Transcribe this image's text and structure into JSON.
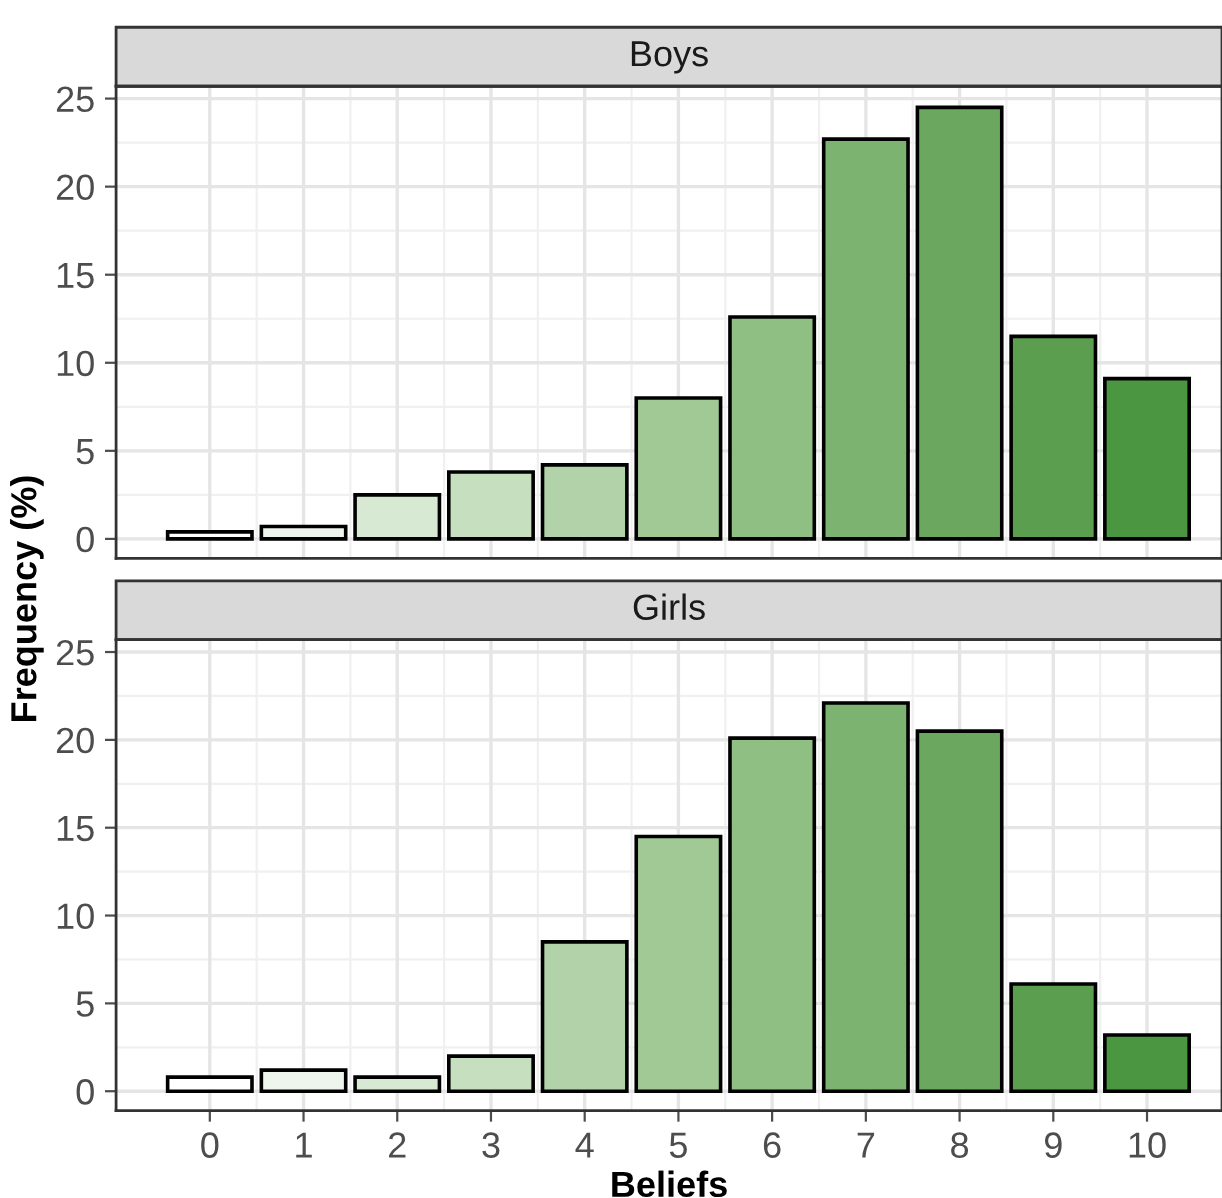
{
  "chart_data": [
    {
      "type": "bar",
      "title": "Boys",
      "ylabel": "Frequency (%)",
      "x": [
        0,
        1,
        2,
        3,
        4,
        5,
        6,
        7,
        8,
        9,
        10
      ],
      "values": [
        0.4,
        0.7,
        2.5,
        3.8,
        4.2,
        8.0,
        12.6,
        22.7,
        24.5,
        11.5,
        9.1
      ],
      "colors": [
        "#ffffff",
        "#eef5ec",
        "#d8e9d3",
        "#c5dfbf",
        "#b2d3aa",
        "#a0c995",
        "#8fbf82",
        "#7db370",
        "#6ca75f",
        "#5b9e50",
        "#4a9641"
      ],
      "xlim": [
        -1,
        10.8
      ],
      "ylim": [
        -1.1,
        25.7
      ],
      "xticks": [
        0,
        1,
        2,
        3,
        4,
        5,
        6,
        7,
        8,
        9,
        10
      ],
      "yticks": [
        0,
        5,
        10,
        15,
        20,
        25
      ],
      "grid": true,
      "tick_labels": "y"
    },
    {
      "type": "bar",
      "title": "Girls",
      "xlabel": "Beliefs",
      "x": [
        0,
        1,
        2,
        3,
        4,
        5,
        6,
        7,
        8,
        9,
        10
      ],
      "values": [
        0.8,
        1.2,
        0.8,
        2.0,
        8.5,
        14.5,
        20.1,
        22.1,
        20.5,
        6.1,
        3.2
      ],
      "colors": [
        "#ffffff",
        "#eef5ec",
        "#d8e9d3",
        "#c5dfbf",
        "#b2d3aa",
        "#a0c995",
        "#8fbf82",
        "#7db370",
        "#6ca75f",
        "#5b9e50",
        "#4a9641"
      ],
      "xlim": [
        -1,
        10.8
      ],
      "ylim": [
        -1.1,
        25.7
      ],
      "xticks": [
        0,
        1,
        2,
        3,
        4,
        5,
        6,
        7,
        8,
        9,
        10
      ],
      "yticks": [
        0,
        5,
        10,
        15,
        20,
        25
      ],
      "grid": true
    }
  ]
}
